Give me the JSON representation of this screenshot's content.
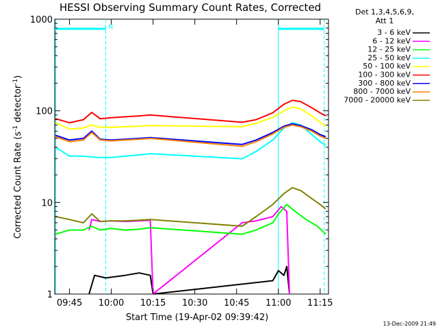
{
  "chart_data": {
    "type": "line",
    "title": "HESSI Observing Summary Count Rates, Corrected",
    "xlabel": "Start Time (19-Apr-02 09:39:42)",
    "ylabel_main": "Corrected Count Rate (s",
    "ylabel_sup1": "-1",
    "ylabel_mid": " detector",
    "ylabel_sup2": "-1",
    "ylabel_end": ")",
    "xlim": [
      "09:39:42",
      "11:18:00"
    ],
    "ylim": [
      1,
      1000
    ],
    "yscale": "log",
    "xticks": [
      "09:45",
      "10:00",
      "10:15",
      "10:30",
      "10:45",
      "11:00",
      "11:15"
    ],
    "yticks": [
      1,
      10,
      100,
      1000
    ],
    "ytick_labels": [
      "1",
      "10",
      "100",
      "1000"
    ],
    "legend_header": [
      "Det 1,3,4,5,6,9,",
      "Att 1"
    ],
    "legend_position": "top-right",
    "timestamp": "13-Dec-2009 21:49",
    "annotation_n": "N",
    "night_bars": [
      {
        "start": "09:39:42",
        "end": "09:58:00"
      },
      {
        "start": "11:00:00",
        "end": "11:16:30"
      }
    ],
    "saa_lines": [
      "09:40:00",
      "09:58:00",
      "11:00:00",
      "11:16:30"
    ],
    "series": [
      {
        "name": "3 - 6 keV",
        "color": "#000000",
        "points": [
          [
            "09:52",
            "1"
          ],
          [
            "09:54",
            "1.6"
          ],
          [
            "09:58",
            "1.5"
          ],
          [
            "10:05",
            "1.6"
          ],
          [
            "10:10",
            "1.7"
          ],
          [
            "10:14",
            "1.6"
          ],
          [
            "10:15",
            "1"
          ],
          [
            "10:58",
            "1.4"
          ],
          [
            "11:00",
            "1.8"
          ],
          [
            "11:02",
            "1.6"
          ],
          [
            "11:03",
            "2.0"
          ],
          [
            "11:04",
            "1"
          ]
        ]
      },
      {
        "name": "6 - 12 keV",
        "color": "#ff00ff",
        "points": [
          [
            "09:52",
            "5"
          ],
          [
            "09:53",
            "6.5"
          ],
          [
            "09:56",
            "6.2"
          ],
          [
            "10:00",
            "6.3"
          ],
          [
            "10:05",
            "6.2"
          ],
          [
            "10:10",
            "6.3"
          ],
          [
            "10:14",
            "6.4"
          ],
          [
            "10:15",
            "1"
          ],
          [
            "10:47",
            "6.0"
          ],
          [
            "10:52",
            "6.3"
          ],
          [
            "10:58",
            "7.0"
          ],
          [
            "11:01",
            "9.0"
          ],
          [
            "11:03",
            "8.0"
          ],
          [
            "11:04",
            "1"
          ]
        ]
      },
      {
        "name": "12 - 25 keV",
        "color": "#00ff00",
        "points": [
          [
            "09:40",
            "4.5"
          ],
          [
            "09:45",
            "5.0"
          ],
          [
            "09:50",
            "5.0"
          ],
          [
            "09:53",
            "5.5"
          ],
          [
            "09:56",
            "5.0"
          ],
          [
            "10:00",
            "5.2"
          ],
          [
            "10:05",
            "5.0"
          ],
          [
            "10:10",
            "5.1"
          ],
          [
            "10:14",
            "5.3"
          ],
          [
            "10:47",
            "4.5"
          ],
          [
            "10:52",
            "5.0"
          ],
          [
            "10:58",
            "6.0"
          ],
          [
            "11:00",
            "7.5"
          ],
          [
            "11:03",
            "9.5"
          ],
          [
            "11:06",
            "8.0"
          ],
          [
            "11:10",
            "6.5"
          ],
          [
            "11:14",
            "5.5"
          ],
          [
            "11:17",
            "4.5"
          ]
        ]
      },
      {
        "name": "25 - 50 keV",
        "color": "#00ffff",
        "points": [
          [
            "09:40",
            "40"
          ],
          [
            "09:45",
            "32"
          ],
          [
            "09:50",
            "32"
          ],
          [
            "09:55",
            "31"
          ],
          [
            "10:00",
            "31"
          ],
          [
            "10:05",
            "32"
          ],
          [
            "10:10",
            "33"
          ],
          [
            "10:14",
            "34"
          ],
          [
            "10:47",
            "30"
          ],
          [
            "10:52",
            "36"
          ],
          [
            "10:58",
            "48"
          ],
          [
            "11:02",
            "65"
          ],
          [
            "11:05",
            "74"
          ],
          [
            "11:08",
            "70"
          ],
          [
            "11:12",
            "55"
          ],
          [
            "11:15",
            "46"
          ],
          [
            "11:17",
            "42"
          ]
        ]
      },
      {
        "name": "50 - 100 keV",
        "color": "#ffff00",
        "points": [
          [
            "09:40",
            "74"
          ],
          [
            "09:45",
            "63"
          ],
          [
            "09:50",
            "65"
          ],
          [
            "09:53",
            "70"
          ],
          [
            "09:56",
            "66"
          ],
          [
            "10:00",
            "66"
          ],
          [
            "10:05",
            "67"
          ],
          [
            "10:10",
            "68"
          ],
          [
            "10:14",
            "69"
          ],
          [
            "10:47",
            "67"
          ],
          [
            "10:52",
            "73"
          ],
          [
            "10:58",
            "85"
          ],
          [
            "11:02",
            "100"
          ],
          [
            "11:05",
            "110"
          ],
          [
            "11:08",
            "105"
          ],
          [
            "11:12",
            "88"
          ],
          [
            "11:15",
            "75"
          ],
          [
            "11:17",
            "68"
          ]
        ]
      },
      {
        "name": "100 - 300 keV",
        "color": "#ff0000",
        "points": [
          [
            "09:40",
            "82"
          ],
          [
            "09:45",
            "74"
          ],
          [
            "09:50",
            "80"
          ],
          [
            "09:53",
            "96"
          ],
          [
            "09:56",
            "82"
          ],
          [
            "10:00",
            "84"
          ],
          [
            "10:05",
            "86"
          ],
          [
            "10:10",
            "88"
          ],
          [
            "10:14",
            "90"
          ],
          [
            "10:47",
            "75"
          ],
          [
            "10:52",
            "80"
          ],
          [
            "10:58",
            "95"
          ],
          [
            "11:02",
            "118"
          ],
          [
            "11:05",
            "130"
          ],
          [
            "11:08",
            "126"
          ],
          [
            "11:12",
            "108"
          ],
          [
            "11:15",
            "95"
          ],
          [
            "11:17",
            "88"
          ]
        ]
      },
      {
        "name": "300 - 800 keV",
        "color": "#0000ff",
        "points": [
          [
            "09:40",
            "54"
          ],
          [
            "09:45",
            "48"
          ],
          [
            "09:50",
            "50"
          ],
          [
            "09:53",
            "60"
          ],
          [
            "09:56",
            "49"
          ],
          [
            "10:00",
            "48"
          ],
          [
            "10:05",
            "49"
          ],
          [
            "10:10",
            "50"
          ],
          [
            "10:14",
            "51"
          ],
          [
            "10:47",
            "43"
          ],
          [
            "10:52",
            "48"
          ],
          [
            "10:58",
            "58"
          ],
          [
            "11:02",
            "68"
          ],
          [
            "11:05",
            "72"
          ],
          [
            "11:08",
            "69"
          ],
          [
            "11:12",
            "62"
          ],
          [
            "11:15",
            "55"
          ],
          [
            "11:17",
            "52"
          ]
        ]
      },
      {
        "name": "800 - 7000 keV",
        "color": "#ff8000",
        "points": [
          [
            "09:40",
            "52"
          ],
          [
            "09:45",
            "46"
          ],
          [
            "09:50",
            "48"
          ],
          [
            "09:53",
            "58"
          ],
          [
            "09:56",
            "48"
          ],
          [
            "10:00",
            "47"
          ],
          [
            "10:05",
            "48"
          ],
          [
            "10:10",
            "49"
          ],
          [
            "10:14",
            "50"
          ],
          [
            "10:47",
            "41"
          ],
          [
            "10:52",
            "46"
          ],
          [
            "10:58",
            "56"
          ],
          [
            "11:02",
            "66"
          ],
          [
            "11:05",
            "70"
          ],
          [
            "11:08",
            "67"
          ],
          [
            "11:12",
            "60"
          ],
          [
            "11:15",
            "53"
          ],
          [
            "11:17",
            "50"
          ]
        ]
      },
      {
        "name": "7000 - 20000 keV",
        "color": "#808000",
        "points": [
          [
            "09:40",
            "7.0"
          ],
          [
            "09:45",
            "6.5"
          ],
          [
            "09:50",
            "6.0"
          ],
          [
            "09:53",
            "7.5"
          ],
          [
            "09:56",
            "6.2"
          ],
          [
            "10:00",
            "6.3"
          ],
          [
            "10:05",
            "6.3"
          ],
          [
            "10:10",
            "6.4"
          ],
          [
            "10:14",
            "6.5"
          ],
          [
            "10:47",
            "5.5"
          ],
          [
            "10:52",
            "7.0"
          ],
          [
            "10:58",
            "9.5"
          ],
          [
            "11:02",
            "12.5"
          ],
          [
            "11:05",
            "14.5"
          ],
          [
            "11:08",
            "13.5"
          ],
          [
            "11:12",
            "11.0"
          ],
          [
            "11:15",
            "9.5"
          ],
          [
            "11:17",
            "8.5"
          ]
        ]
      }
    ]
  }
}
